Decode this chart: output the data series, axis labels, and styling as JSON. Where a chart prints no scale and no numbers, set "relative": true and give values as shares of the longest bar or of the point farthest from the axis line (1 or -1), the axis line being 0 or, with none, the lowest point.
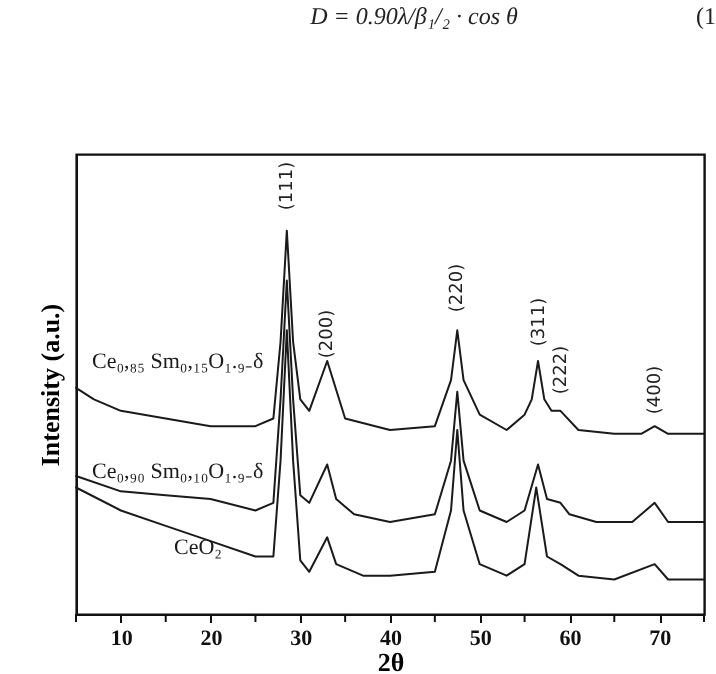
{
  "chart_data": {
    "type": "line",
    "relative": true,
    "xlabel": "2θ",
    "ylabel": "Intensity (a.u.)",
    "xlim": [
      5,
      75
    ],
    "xticks": [
      {
        "value": 5,
        "label": null
      },
      10,
      {
        "value": 15,
        "label": null
      },
      20,
      {
        "value": 25,
        "label": null
      },
      30,
      {
        "value": 35,
        "label": null
      },
      40,
      {
        "value": 45,
        "label": null
      },
      50,
      {
        "value": 55,
        "label": null
      },
      60,
      {
        "value": 65,
        "label": null
      },
      70,
      {
        "value": 75,
        "label": null
      }
    ],
    "grid": false,
    "legend": false,
    "marker": "none",
    "line_style": "solid",
    "annotations": [
      "D = 0.90λ/β₁/₂ · cos θ",
      "(1",
      "(111)",
      "(200)",
      "(220)",
      "(311)",
      "(222)",
      "(400)"
    ],
    "series": [
      {
        "name": "Ce₀,₈₅ Sm₀,₁₅O₁.₉₋δ",
        "color": "#1a1a1a",
        "x": [
          5,
          7,
          10,
          15,
          20,
          25,
          27,
          27.8,
          28.5,
          29.2,
          30,
          31,
          33,
          35,
          40,
          45,
          46.8,
          47.5,
          48.2,
          50,
          53,
          55,
          55.8,
          56.5,
          57.2,
          58,
          59,
          61,
          65,
          68,
          69.5,
          71,
          75
        ],
        "values": [
          0.59,
          0.56,
          0.53,
          0.51,
          0.49,
          0.49,
          0.51,
          0.71,
          1.0,
          0.71,
          0.56,
          0.53,
          0.66,
          0.51,
          0.48,
          0.49,
          0.61,
          0.74,
          0.61,
          0.52,
          0.48,
          0.52,
          0.56,
          0.66,
          0.56,
          0.53,
          0.53,
          0.48,
          0.47,
          0.47,
          0.49,
          0.47,
          0.47
        ]
      },
      {
        "name": "Ce₀,₉₀ Sm₀,₁₀O₁.₉₋δ",
        "color": "#1a1a1a",
        "x": [
          5,
          10,
          15,
          20,
          25,
          27,
          27.8,
          28.5,
          29.2,
          30,
          31,
          33,
          34,
          36,
          40,
          45,
          46.8,
          47.5,
          48.2,
          50,
          53,
          55,
          56.5,
          57.5,
          59,
          60,
          63,
          67,
          69.5,
          71,
          75
        ],
        "values": [
          0.36,
          0.32,
          0.31,
          0.3,
          0.27,
          0.29,
          0.56,
          0.87,
          0.56,
          0.31,
          0.29,
          0.39,
          0.3,
          0.26,
          0.24,
          0.26,
          0.4,
          0.58,
          0.4,
          0.27,
          0.24,
          0.27,
          0.39,
          0.3,
          0.29,
          0.26,
          0.24,
          0.24,
          0.29,
          0.24,
          0.24
        ]
      },
      {
        "name": "CeO₂",
        "color": "#1a1a1a",
        "x": [
          5,
          10,
          15,
          20,
          25,
          27,
          27.8,
          28.5,
          29.2,
          30,
          31,
          33,
          34,
          37,
          40,
          45,
          46.8,
          47.5,
          48.2,
          50,
          53,
          55,
          56.3,
          57.5,
          59,
          61,
          65,
          69.5,
          71,
          75
        ],
        "values": [
          0.33,
          0.27,
          0.23,
          0.19,
          0.15,
          0.15,
          0.4,
          0.74,
          0.4,
          0.14,
          0.11,
          0.2,
          0.13,
          0.1,
          0.1,
          0.11,
          0.27,
          0.48,
          0.27,
          0.13,
          0.1,
          0.13,
          0.33,
          0.15,
          0.13,
          0.1,
          0.09,
          0.13,
          0.09,
          0.09
        ]
      }
    ]
  }
}
